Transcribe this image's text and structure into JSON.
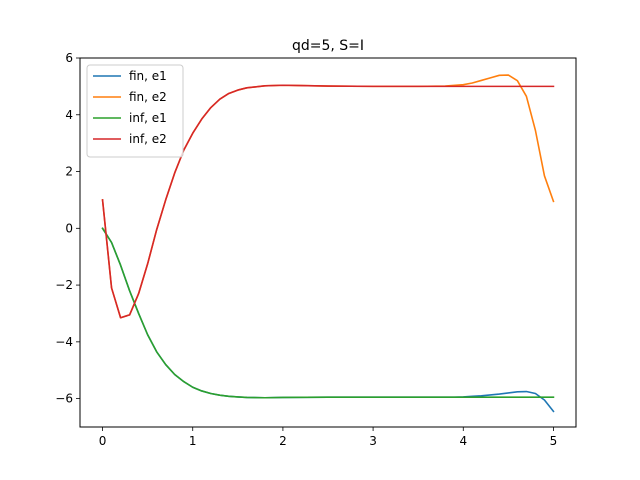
{
  "chart_data": {
    "type": "line",
    "title": "qd=5, S=I",
    "xlabel": "",
    "ylabel": "",
    "xlim": [
      -0.25,
      5.25
    ],
    "ylim": [
      -7,
      6
    ],
    "xticks": [
      0,
      1,
      2,
      3,
      4,
      5
    ],
    "yticks": [
      -6,
      -4,
      -2,
      0,
      2,
      4,
      6
    ],
    "grid": false,
    "legend_position": "top-left",
    "series": [
      {
        "name": "fin, e1",
        "color": "#1f77b4",
        "x": [
          0,
          0.1,
          0.2,
          0.3,
          0.4,
          0.5,
          0.6,
          0.7,
          0.8,
          0.9,
          1.0,
          1.1,
          1.2,
          1.3,
          1.4,
          1.5,
          1.6,
          1.8,
          2.0,
          2.5,
          3.0,
          3.5,
          3.9,
          4.0,
          4.1,
          4.2,
          4.3,
          4.4,
          4.5,
          4.6,
          4.7,
          4.8,
          4.9,
          5.0
        ],
        "y": [
          0,
          -0.5,
          -1.3,
          -2.2,
          -3.0,
          -3.75,
          -4.35,
          -4.8,
          -5.15,
          -5.4,
          -5.6,
          -5.73,
          -5.82,
          -5.88,
          -5.92,
          -5.94,
          -5.96,
          -5.97,
          -5.96,
          -5.95,
          -5.95,
          -5.95,
          -5.95,
          -5.94,
          -5.92,
          -5.9,
          -5.87,
          -5.84,
          -5.8,
          -5.76,
          -5.75,
          -5.82,
          -6.05,
          -6.45
        ]
      },
      {
        "name": "fin, e2",
        "color": "#ff7f0e",
        "x": [
          0,
          0.1,
          0.2,
          0.3,
          0.4,
          0.5,
          0.6,
          0.7,
          0.8,
          0.9,
          1.0,
          1.1,
          1.2,
          1.3,
          1.4,
          1.5,
          1.6,
          1.8,
          2.0,
          2.2,
          2.5,
          3.0,
          3.5,
          3.8,
          4.0,
          4.1,
          4.2,
          4.3,
          4.4,
          4.5,
          4.6,
          4.7,
          4.8,
          4.9,
          5.0
        ],
        "y": [
          1.0,
          -2.1,
          -3.15,
          -3.05,
          -2.3,
          -1.25,
          -0.05,
          1.0,
          1.95,
          2.75,
          3.35,
          3.85,
          4.25,
          4.55,
          4.75,
          4.87,
          4.95,
          5.02,
          5.04,
          5.03,
          5.01,
          5.0,
          5.0,
          5.01,
          5.06,
          5.12,
          5.21,
          5.3,
          5.39,
          5.4,
          5.2,
          4.65,
          3.45,
          1.85,
          0.95
        ]
      },
      {
        "name": "inf, e1",
        "color": "#2ca02c",
        "x": [
          0,
          0.1,
          0.2,
          0.3,
          0.4,
          0.5,
          0.6,
          0.7,
          0.8,
          0.9,
          1.0,
          1.1,
          1.2,
          1.3,
          1.4,
          1.5,
          1.6,
          1.8,
          2.0,
          2.5,
          3.0,
          3.5,
          4.0,
          4.5,
          5.0
        ],
        "y": [
          0,
          -0.5,
          -1.3,
          -2.2,
          -3.0,
          -3.75,
          -4.35,
          -4.8,
          -5.15,
          -5.4,
          -5.6,
          -5.73,
          -5.82,
          -5.88,
          -5.92,
          -5.94,
          -5.96,
          -5.97,
          -5.96,
          -5.95,
          -5.95,
          -5.95,
          -5.95,
          -5.95,
          -5.95
        ]
      },
      {
        "name": "inf, e2",
        "color": "#d62728",
        "x": [
          0,
          0.1,
          0.2,
          0.3,
          0.4,
          0.5,
          0.6,
          0.7,
          0.8,
          0.9,
          1.0,
          1.1,
          1.2,
          1.3,
          1.4,
          1.5,
          1.6,
          1.8,
          2.0,
          2.2,
          2.5,
          3.0,
          3.5,
          4.0,
          4.5,
          5.0
        ],
        "y": [
          1.0,
          -2.1,
          -3.15,
          -3.05,
          -2.3,
          -1.25,
          -0.05,
          1.0,
          1.95,
          2.75,
          3.35,
          3.85,
          4.25,
          4.55,
          4.75,
          4.87,
          4.95,
          5.02,
          5.04,
          5.03,
          5.01,
          5.0,
          5.0,
          5.0,
          5.0,
          5.0
        ]
      }
    ]
  }
}
